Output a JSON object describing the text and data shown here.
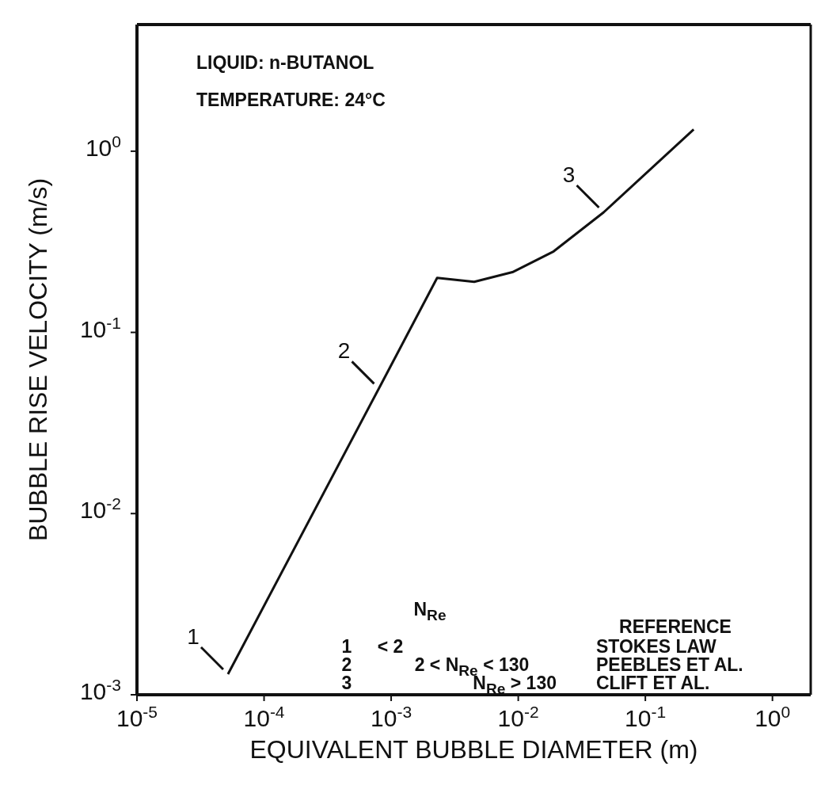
{
  "chart_data": {
    "type": "line",
    "xlabel": "EQUIVALENT BUBBLE DIAMETER (m)",
    "ylabel": "BUBBLE RISE VELOCITY (m/s)",
    "x": [
      5.2e-05,
      0.0008,
      0.0023,
      0.0045,
      0.009,
      0.019,
      0.047,
      0.24
    ],
    "values": [
      0.0013,
      0.049,
      0.2,
      0.19,
      0.215,
      0.28,
      0.46,
      1.32
    ],
    "color": "#111111",
    "log": "xy",
    "marker": "none",
    "line_style": "solid",
    "grid": false,
    "legend": false,
    "xlim": [
      1e-05,
      2
    ],
    "ylim": [
      0.001,
      5
    ],
    "xticks": [
      {
        "value": 1e-05,
        "label": "10$^{-5}$"
      },
      {
        "value": 0.0001,
        "label": "10$^{-4}$"
      },
      {
        "value": 0.001,
        "label": "10$^{-3}$"
      },
      {
        "value": 0.01,
        "label": "10$^{-2}$"
      },
      {
        "value": 0.1,
        "label": "10$^{-1}$"
      },
      {
        "value": 1,
        "label": "10$^{0}$"
      }
    ],
    "yticks": [
      {
        "value": 0.001,
        "label": "10$^{-3}$"
      },
      {
        "value": 0.01,
        "label": "10$^{-2}$"
      },
      {
        "value": 0.1,
        "label": "10$^{-1}$"
      },
      {
        "value": 1,
        "label": "10$^{0}$"
      }
    ],
    "annotations": [
      "LIQUID: n-BUTANOL",
      "TEMPERATURE: 24°C",
      "N$_{Re}$",
      "REFERENCE",
      "1",
      "< 2",
      "STOKES LAW",
      "2",
      "2 < N$_{Re}$ < 130",
      "PEEBLES ET AL.",
      "3",
      "N$_{Re}$ > 130",
      "CLIFT ET AL.",
      {
        "text": "1",
        "x": 5.2e-05,
        "y": 0.0013
      },
      {
        "text": "2",
        "x": 0.0008,
        "y": 0.049
      },
      {
        "text": "3",
        "x": 0.047,
        "y": 0.46
      }
    ]
  }
}
